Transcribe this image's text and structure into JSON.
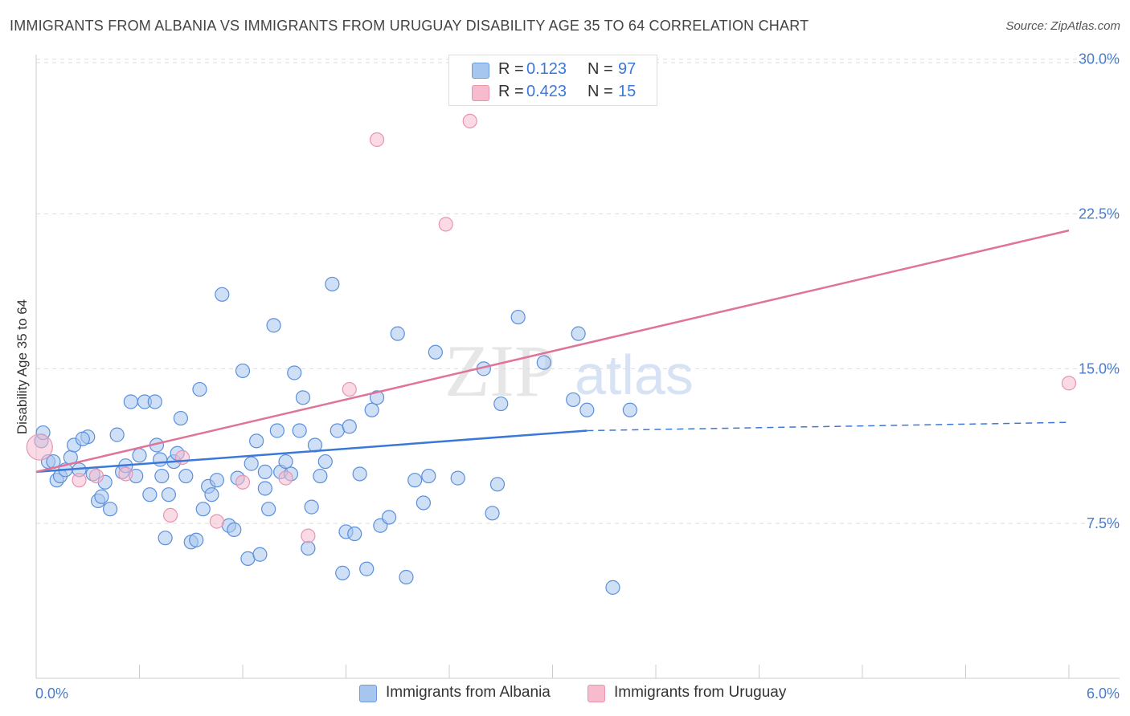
{
  "title": "IMMIGRANTS FROM ALBANIA VS IMMIGRANTS FROM URUGUAY DISABILITY AGE 35 TO 64 CORRELATION CHART",
  "source": "Source: ZipAtlas.com",
  "watermark": {
    "zip": "ZIP",
    "atlas": "atlas"
  },
  "colors": {
    "blue": "#3c78d8",
    "blue_fill": "#a7c6ef",
    "pink": "#e07399",
    "pink_fill": "#f6bccd",
    "grid": "#dddddd",
    "tick": "#4a7cc9"
  },
  "legend": {
    "rows": [
      {
        "r_label": "R =",
        "r_value": "0.123",
        "n_label": "N =",
        "n_value": "97"
      },
      {
        "r_label": "R =",
        "r_value": "0.423",
        "n_label": "N =",
        "n_value": "15"
      }
    ]
  },
  "bottom_legend": [
    {
      "label": "Immigrants from Albania"
    },
    {
      "label": "Immigrants from Uruguay"
    }
  ],
  "chart_data": {
    "type": "scatter",
    "title": "IMMIGRANTS FROM ALBANIA VS IMMIGRANTS FROM URUGUAY DISABILITY AGE 35 TO 64 CORRELATION CHART",
    "xlabel": "",
    "ylabel": "Disability Age 35 to 64",
    "xlim": [
      0,
      6.0
    ],
    "ylim": [
      0,
      31.0
    ],
    "y_ticks": [
      7.5,
      15.0,
      22.5,
      30.0
    ],
    "y_tick_labels": [
      "7.5%",
      "15.0%",
      "22.5%",
      "30.0%"
    ],
    "x_tick_labels": [
      "0.0%",
      "6.0%"
    ],
    "grid": true,
    "series": [
      {
        "name": "Immigrants from Albania",
        "trend": {
          "x0": 0.0,
          "y0": 10.0,
          "x1": 3.2,
          "y1": 12.0,
          "dashed_to_x": 6.0,
          "dashed_to_y": 12.4
        },
        "points": [
          [
            0.03,
            11.5
          ],
          [
            0.04,
            11.9
          ],
          [
            0.07,
            10.5
          ],
          [
            0.1,
            10.5
          ],
          [
            0.12,
            9.6
          ],
          [
            0.14,
            9.8
          ],
          [
            0.17,
            10.1
          ],
          [
            0.2,
            10.7
          ],
          [
            0.22,
            11.3
          ],
          [
            0.25,
            10.1
          ],
          [
            0.3,
            11.7
          ],
          [
            0.33,
            9.9
          ],
          [
            0.36,
            8.6
          ],
          [
            0.38,
            8.8
          ],
          [
            0.4,
            9.5
          ],
          [
            0.43,
            8.2
          ],
          [
            0.47,
            11.8
          ],
          [
            0.5,
            10.0
          ],
          [
            0.52,
            10.3
          ],
          [
            0.55,
            13.4
          ],
          [
            0.58,
            9.8
          ],
          [
            0.6,
            10.8
          ],
          [
            0.63,
            13.4
          ],
          [
            0.66,
            8.9
          ],
          [
            0.69,
            13.4
          ],
          [
            0.7,
            11.3
          ],
          [
            0.72,
            10.6
          ],
          [
            0.75,
            6.8
          ],
          [
            0.77,
            8.9
          ],
          [
            0.8,
            10.5
          ],
          [
            0.82,
            10.9
          ],
          [
            0.84,
            12.6
          ],
          [
            0.87,
            9.8
          ],
          [
            0.9,
            6.6
          ],
          [
            0.93,
            6.7
          ],
          [
            0.95,
            14.0
          ],
          [
            0.97,
            8.2
          ],
          [
            1.0,
            9.3
          ],
          [
            1.02,
            8.9
          ],
          [
            1.05,
            9.6
          ],
          [
            1.08,
            18.6
          ],
          [
            1.12,
            7.4
          ],
          [
            1.15,
            7.2
          ],
          [
            1.17,
            9.7
          ],
          [
            1.2,
            14.9
          ],
          [
            1.23,
            5.8
          ],
          [
            1.25,
            10.4
          ],
          [
            1.28,
            11.5
          ],
          [
            1.3,
            6.0
          ],
          [
            1.33,
            9.2
          ],
          [
            1.35,
            8.2
          ],
          [
            1.38,
            17.1
          ],
          [
            1.4,
            12.0
          ],
          [
            1.42,
            10.0
          ],
          [
            1.45,
            10.5
          ],
          [
            1.48,
            9.9
          ],
          [
            1.5,
            14.8
          ],
          [
            1.53,
            12.0
          ],
          [
            1.55,
            13.6
          ],
          [
            1.58,
            6.3
          ],
          [
            1.6,
            8.3
          ],
          [
            1.62,
            11.3
          ],
          [
            1.65,
            9.8
          ],
          [
            1.68,
            10.5
          ],
          [
            1.72,
            19.1
          ],
          [
            1.75,
            12.0
          ],
          [
            1.78,
            5.1
          ],
          [
            1.8,
            7.1
          ],
          [
            1.82,
            12.2
          ],
          [
            1.85,
            7.0
          ],
          [
            1.88,
            9.9
          ],
          [
            1.92,
            5.3
          ],
          [
            1.95,
            13.0
          ],
          [
            1.98,
            13.6
          ],
          [
            2.0,
            7.4
          ],
          [
            2.05,
            7.8
          ],
          [
            2.1,
            16.7
          ],
          [
            2.15,
            4.9
          ],
          [
            2.2,
            9.6
          ],
          [
            2.25,
            8.5
          ],
          [
            2.28,
            9.8
          ],
          [
            2.32,
            15.8
          ],
          [
            2.45,
            9.7
          ],
          [
            2.6,
            15.0
          ],
          [
            2.65,
            8.0
          ],
          [
            2.68,
            9.4
          ],
          [
            2.7,
            13.3
          ],
          [
            2.8,
            17.5
          ],
          [
            2.95,
            15.3
          ],
          [
            3.12,
            13.5
          ],
          [
            3.15,
            16.7
          ],
          [
            3.2,
            13.0
          ],
          [
            3.35,
            4.4
          ],
          [
            3.45,
            13.0
          ],
          [
            1.33,
            10.0
          ],
          [
            0.73,
            9.8
          ],
          [
            0.27,
            11.6
          ]
        ]
      },
      {
        "name": "Immigrants from Uruguay",
        "trend": {
          "x0": 0.0,
          "y0": 10.0,
          "x1": 6.0,
          "y1": 21.7
        },
        "points": [
          [
            0.02,
            11.2
          ],
          [
            0.25,
            9.6
          ],
          [
            0.35,
            9.8
          ],
          [
            0.52,
            9.9
          ],
          [
            0.78,
            7.9
          ],
          [
            0.85,
            10.7
          ],
          [
            1.05,
            7.6
          ],
          [
            1.2,
            9.5
          ],
          [
            1.45,
            9.7
          ],
          [
            1.58,
            6.9
          ],
          [
            1.82,
            14.0
          ],
          [
            1.98,
            26.1
          ],
          [
            2.38,
            22.0
          ],
          [
            2.52,
            27.0
          ],
          [
            6.0,
            14.3
          ]
        ]
      }
    ]
  }
}
